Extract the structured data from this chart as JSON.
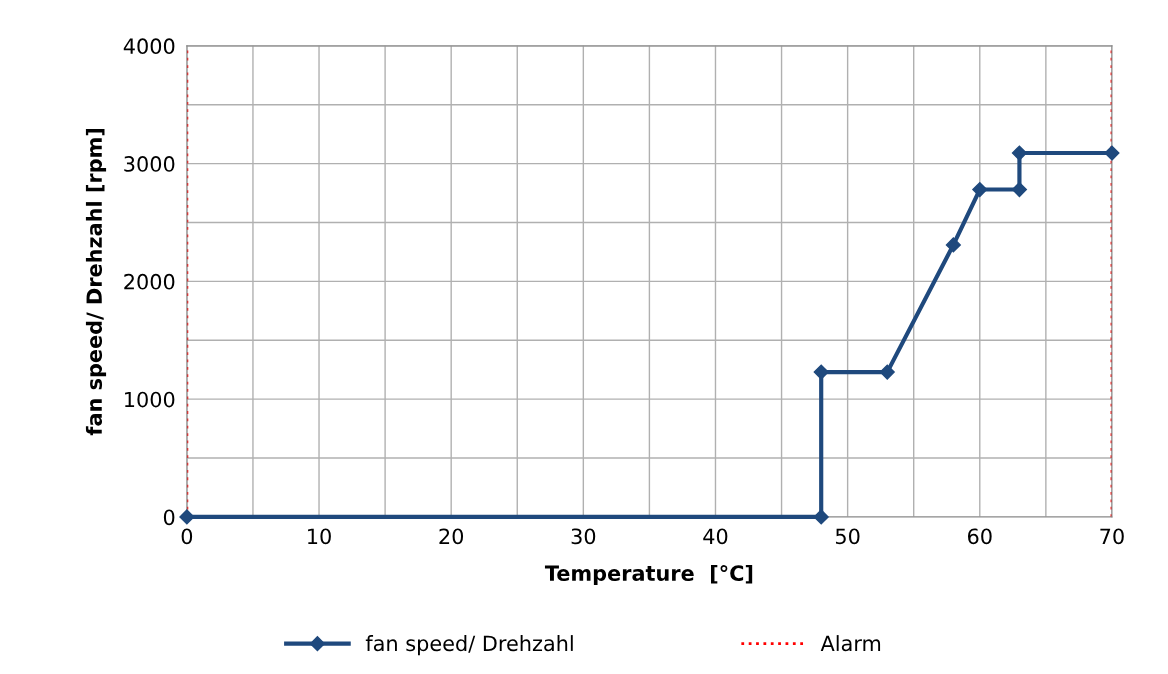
{
  "chart_data": {
    "type": "line",
    "xlabel": "Temperature  [°C]",
    "ylabel": "fan speed/ Drehzahl [rpm]",
    "x": [
      0,
      48,
      48,
      53,
      58,
      60,
      63,
      63,
      70
    ],
    "series": [
      {
        "name": "fan speed/ Drehzahl",
        "color": "#1f497d",
        "values": [
          0,
          0,
          1230,
          1230,
          2310,
          2780,
          2780,
          3090,
          3090
        ]
      }
    ],
    "xlim": [
      0,
      70
    ],
    "ylim": [
      0,
      4000
    ],
    "xticks": [
      0,
      {
        "value": 5,
        "label": null
      },
      10,
      {
        "value": 15,
        "label": null
      },
      20,
      {
        "value": 25,
        "label": null
      },
      30,
      {
        "value": 35,
        "label": null
      },
      40,
      {
        "value": 45,
        "label": null
      },
      50,
      {
        "value": 55,
        "label": null
      },
      60,
      {
        "value": 65,
        "label": null
      },
      70
    ],
    "yticks": [
      0,
      {
        "value": 500,
        "label": null
      },
      1000,
      {
        "value": 1500,
        "label": null
      },
      2000,
      {
        "value": 2500,
        "label": null
      },
      3000,
      {
        "value": 3500,
        "label": null
      },
      4000
    ],
    "ref_lines": [
      {
        "axis": "x",
        "value": 0,
        "label": "Alarm",
        "color": "#ff0000",
        "line_style": "dotted"
      },
      {
        "axis": "x",
        "value": 70,
        "color": "#ff0000",
        "line_style": "dotted"
      }
    ],
    "grid": true,
    "legend": "bottom",
    "marker": "diamond",
    "line_style": "solid"
  }
}
